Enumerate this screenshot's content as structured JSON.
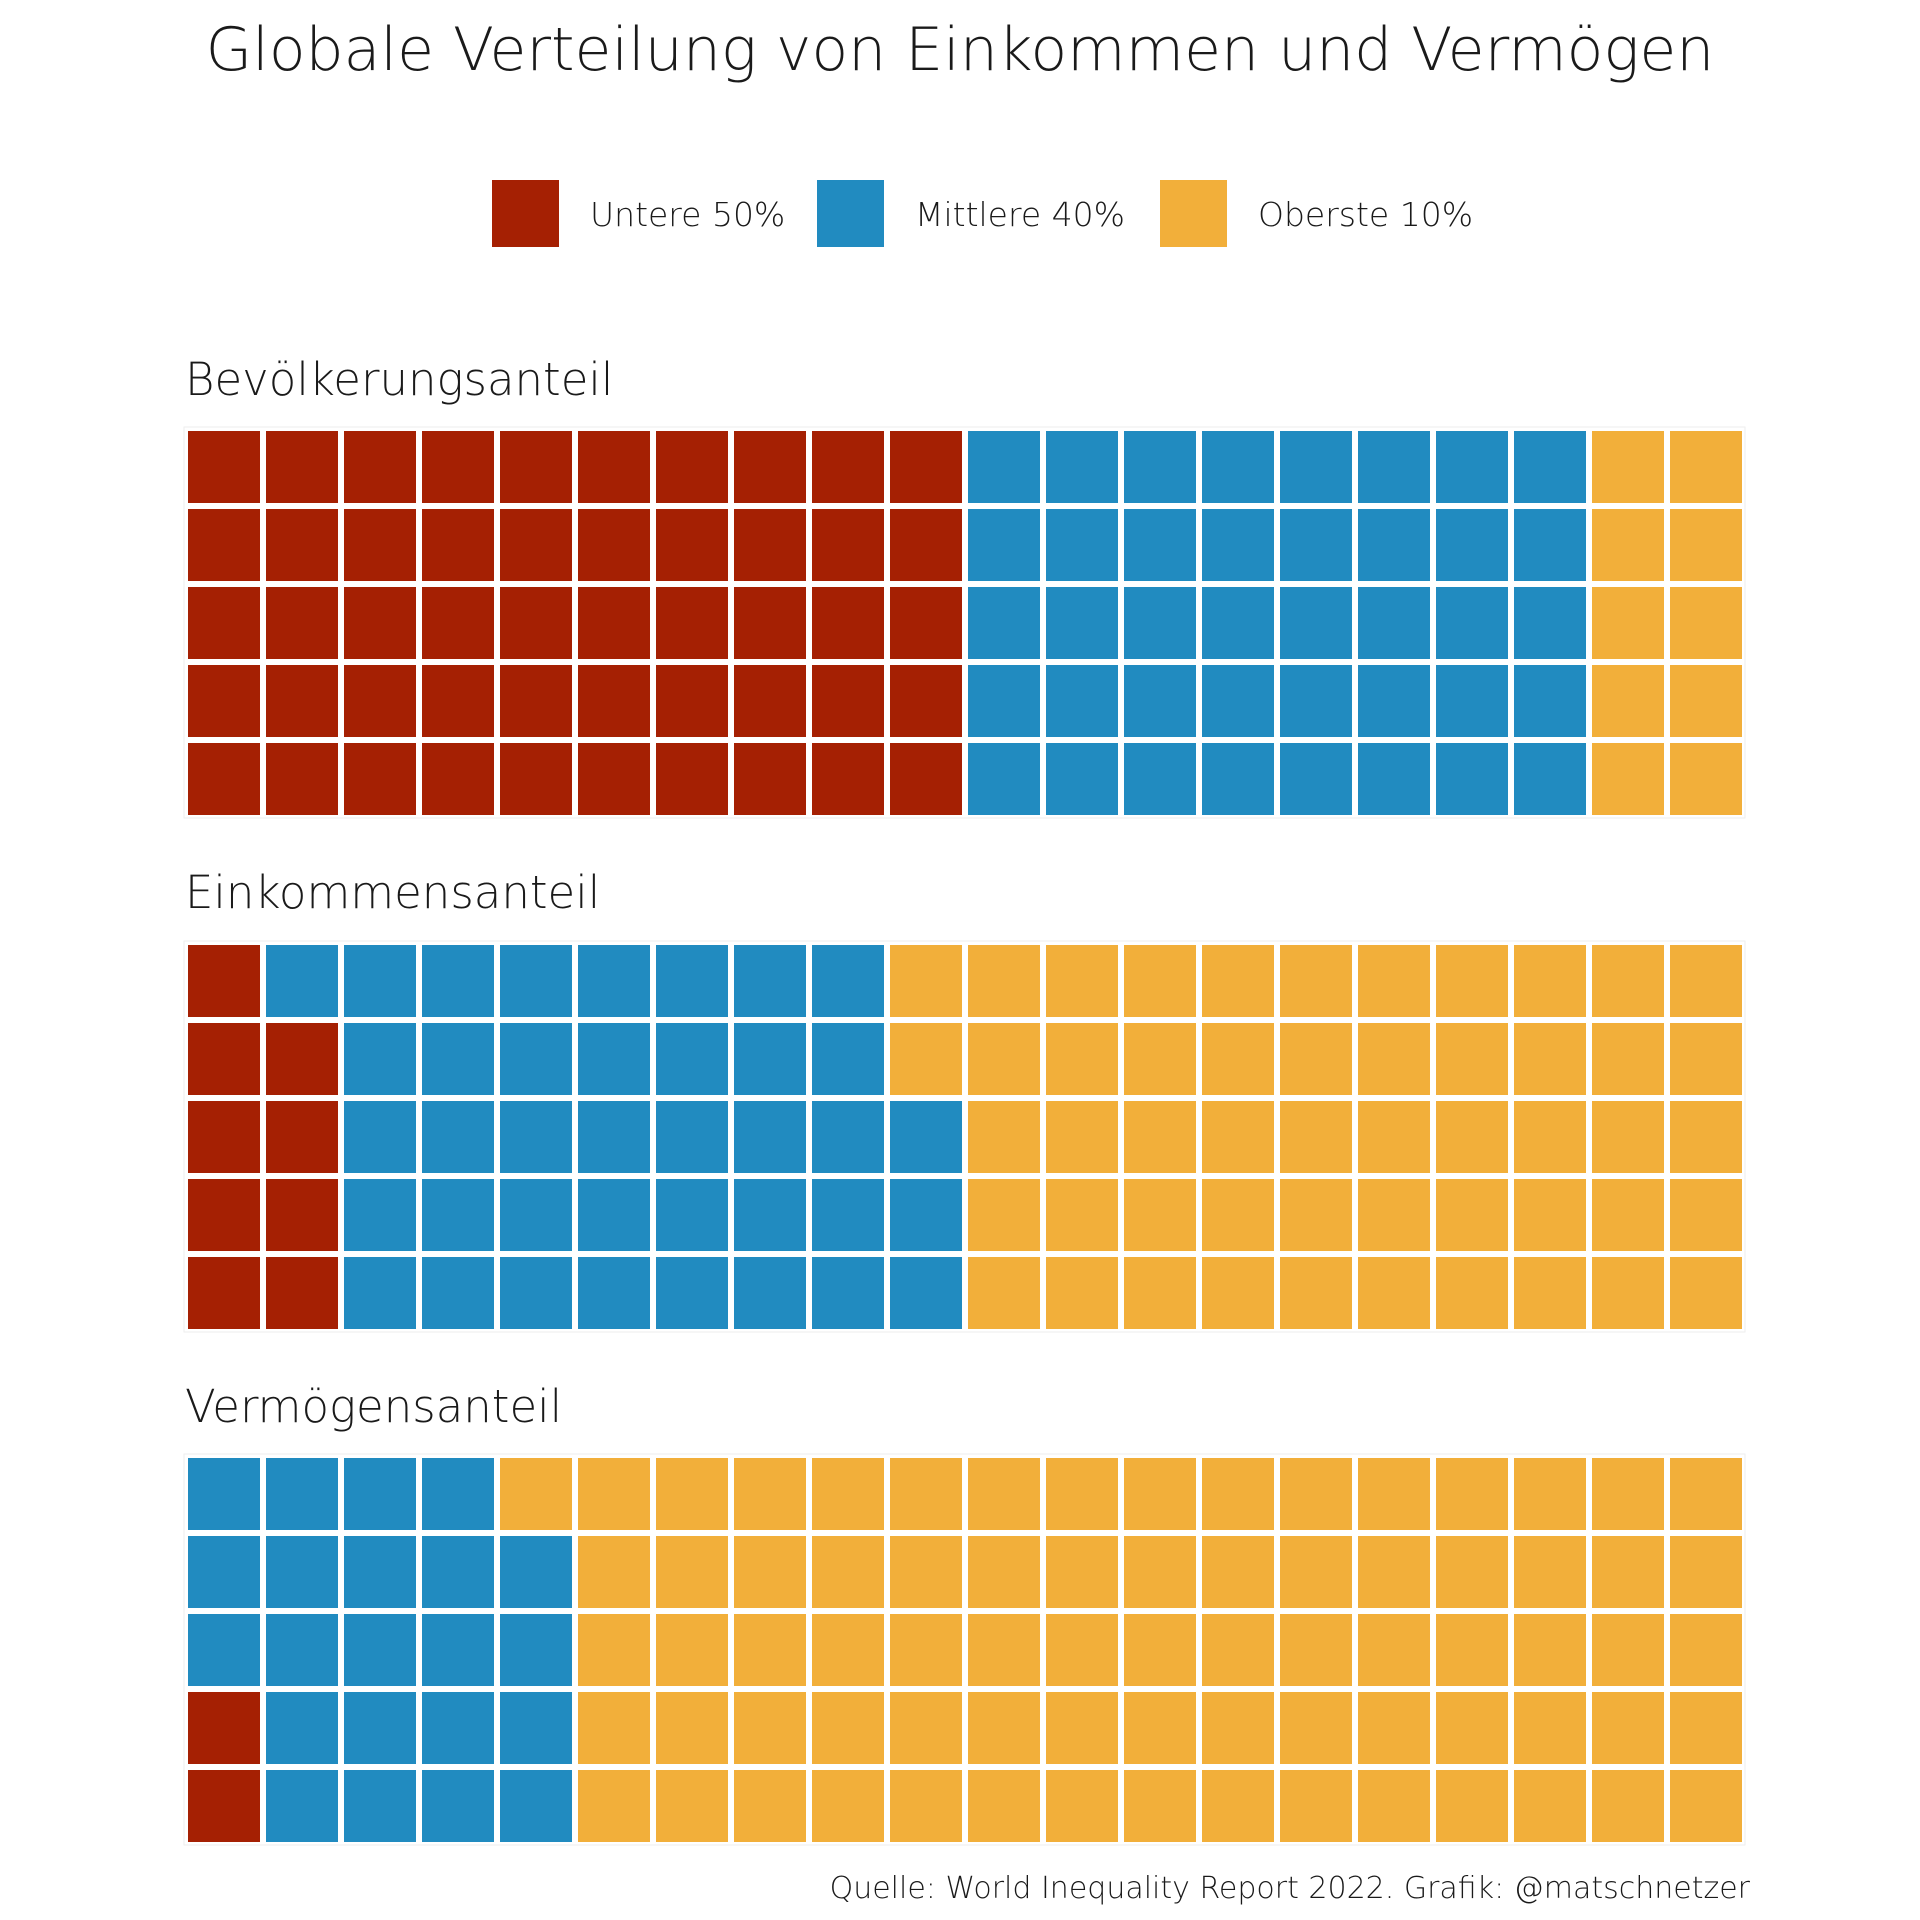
{
  "chart_data": {
    "type": "waffle",
    "title": "Globale Verteilung von Einkommen und Vermögen",
    "caption": "Quelle: World Inequality Report 2022. Grafik: @matschnetzer",
    "legend_position": "top",
    "grid": {
      "rows": 5,
      "cols": 20,
      "fill_order": "column-wise, bottom-to-top"
    },
    "legend": [
      {
        "key": "bottom50",
        "label": "Untere 50%",
        "color": "#A52003"
      },
      {
        "key": "middle40",
        "label": "Mittlere 40%",
        "color": "#218BC0"
      },
      {
        "key": "top10",
        "label": "Oberste 10%",
        "color": "#F2AF3A"
      }
    ],
    "panels": [
      {
        "label": "Bevölkerungsanteil",
        "values": {
          "bottom50": 50,
          "middle40": 40,
          "top10": 10
        }
      },
      {
        "label": "Einkommensanteil",
        "values": {
          "bottom50": 9,
          "middle40": 39,
          "top10": 52
        }
      },
      {
        "label": "Vermögensanteil",
        "values": {
          "bottom50": 2,
          "middle40": 22,
          "top10": 76
        }
      }
    ]
  }
}
